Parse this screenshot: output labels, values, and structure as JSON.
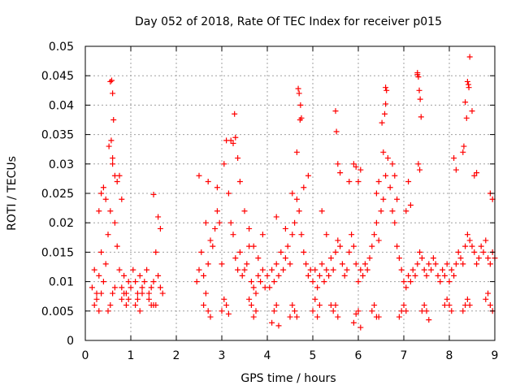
{
  "chart_data": {
    "type": "scatter",
    "title": "Day 052 of 2018, Rate Of TEC Index for receiver p015",
    "xlabel": "GPS time / hours",
    "ylabel": "ROTI / TECUs",
    "xlim": [
      0,
      9
    ],
    "ylim": [
      0,
      0.05
    ],
    "xticks": [
      0,
      1,
      2,
      3,
      4,
      5,
      6,
      7,
      8,
      9
    ],
    "yticks": [
      0,
      0.005,
      0.01,
      0.015,
      0.02,
      0.025,
      0.03,
      0.035,
      0.04,
      0.045,
      0.05
    ],
    "xtick_labels": [
      "0",
      "1",
      "2",
      "3",
      "4",
      "5",
      "6",
      "7",
      "8",
      "9"
    ],
    "ytick_labels": [
      "0",
      "0.005",
      "0.01",
      "0.015",
      "0.02",
      "0.025",
      "0.03",
      "0.035",
      "0.04",
      "0.045",
      "0.05"
    ],
    "grid": true,
    "marker": "+",
    "marker_color": "#ff0000",
    "series": [
      {
        "name": "ROTI",
        "x": [
          0.15,
          0.2,
          0.25,
          0.3,
          0.35,
          0.4,
          0.45,
          0.5,
          0.55,
          0.6,
          0.65,
          0.7,
          0.75,
          0.8,
          0.85,
          0.9,
          0.95,
          1.0,
          1.05,
          1.1,
          1.15,
          1.2,
          1.25,
          1.3,
          1.35,
          1.4,
          1.45,
          1.5,
          1.55,
          1.6,
          1.65,
          1.7,
          0.55,
          0.58,
          0.6,
          0.52,
          0.62,
          0.57,
          0.65,
          0.7,
          0.75,
          0.8,
          1.5,
          1.6,
          1.65,
          0.4,
          0.45,
          0.3,
          0.35,
          0.6,
          2.45,
          2.5,
          2.55,
          2.6,
          2.65,
          2.7,
          2.75,
          2.8,
          2.85,
          2.9,
          2.95,
          3.0,
          3.05,
          3.1,
          3.15,
          3.2,
          3.25,
          3.3,
          3.35,
          3.4,
          3.45,
          3.5,
          3.55,
          3.6,
          3.65,
          3.7,
          3.75,
          3.8,
          3.85,
          3.9,
          3.95,
          2.5,
          2.7,
          2.9,
          3.2,
          3.25,
          3.3,
          3.35,
          3.28,
          3.4,
          3.5,
          3.6,
          3.7,
          3.8,
          3.9,
          4.0,
          4.05,
          4.1,
          4.15,
          4.2,
          4.25,
          4.3,
          4.35,
          4.4,
          4.45,
          4.5,
          4.55,
          4.6,
          4.65,
          4.7,
          4.75,
          4.8,
          4.85,
          4.9,
          4.95,
          4.68,
          4.7,
          4.72,
          4.73,
          4.75,
          4.65,
          4.8,
          4.2,
          4.4,
          4.55,
          4.9,
          5.0,
          5.05,
          5.1,
          5.15,
          5.2,
          5.25,
          5.3,
          5.35,
          5.4,
          5.45,
          5.5,
          5.55,
          5.6,
          5.65,
          5.7,
          5.75,
          5.8,
          5.85,
          5.9,
          5.95,
          5.5,
          5.52,
          5.55,
          5.6,
          5.9,
          5.95,
          5.2,
          5.3,
          5.8,
          6.0,
          6.05,
          6.1,
          6.15,
          6.2,
          6.25,
          6.3,
          6.35,
          6.4,
          6.45,
          6.5,
          6.55,
          6.6,
          6.65,
          6.7,
          6.75,
          6.8,
          6.85,
          6.9,
          6.95,
          6.55,
          6.6,
          6.62,
          6.58,
          6.52,
          6.6,
          6.4,
          6.45,
          6.75,
          6.8,
          6.85,
          6.0,
          6.05,
          7.0,
          7.05,
          7.1,
          7.15,
          7.2,
          7.25,
          7.3,
          7.35,
          7.4,
          7.45,
          7.5,
          7.55,
          7.6,
          7.65,
          7.7,
          7.75,
          7.8,
          7.85,
          7.9,
          7.95,
          7.3,
          7.32,
          7.34,
          7.36,
          7.38,
          7.3,
          7.32,
          7.35,
          7.1,
          7.15,
          7.05,
          8.0,
          8.05,
          8.1,
          8.15,
          8.2,
          8.25,
          8.3,
          8.35,
          8.4,
          8.45,
          8.5,
          8.55,
          8.6,
          8.65,
          8.7,
          8.75,
          8.8,
          8.85,
          8.9,
          8.95,
          9.0,
          8.4,
          8.42,
          8.45,
          8.35,
          8.38,
          8.43,
          8.3,
          8.32,
          8.5,
          8.55,
          8.6,
          8.1,
          8.15,
          8.9,
          8.95,
          0.2,
          0.5,
          0.8,
          1.1,
          1.4,
          2.6,
          3.0,
          3.6,
          4.1,
          4.5,
          5.0,
          5.4,
          5.9,
          6.3,
          6.9,
          7.4,
          7.9,
          8.3,
          8.8,
          0.25,
          0.55,
          0.85,
          1.15,
          1.45,
          2.65,
          3.05,
          3.65,
          4.15,
          4.55,
          5.05,
          5.45,
          5.95,
          6.35,
          6.95,
          7.45,
          7.95,
          8.35,
          8.85,
          0.3,
          0.6,
          0.9,
          1.2,
          1.5,
          2.7,
          3.1,
          3.7,
          4.2,
          4.6,
          5.1,
          5.5,
          6.0,
          6.4,
          7.0,
          7.5,
          8.0,
          8.4,
          8.9,
          0.35,
          0.65,
          0.95,
          1.25,
          1.55,
          2.75,
          3.15,
          3.75,
          4.25,
          4.65,
          5.15,
          5.55,
          6.05,
          6.45,
          7.05,
          7.55,
          8.05,
          8.45,
          8.95
        ],
        "y": [
          0.009,
          0.012,
          0.008,
          0.011,
          0.015,
          0.01,
          0.013,
          0.018,
          0.022,
          0.03,
          0.02,
          0.016,
          0.012,
          0.009,
          0.011,
          0.008,
          0.01,
          0.009,
          0.012,
          0.01,
          0.008,
          0.011,
          0.009,
          0.01,
          0.012,
          0.008,
          0.009,
          0.01,
          0.015,
          0.011,
          0.009,
          0.008,
          0.044,
          0.0442,
          0.042,
          0.033,
          0.0375,
          0.034,
          0.028,
          0.027,
          0.028,
          0.024,
          0.0248,
          0.021,
          0.019,
          0.026,
          0.024,
          0.022,
          0.025,
          0.031,
          0.01,
          0.012,
          0.015,
          0.011,
          0.02,
          0.013,
          0.017,
          0.016,
          0.019,
          0.022,
          0.02,
          0.013,
          0.03,
          0.034,
          0.025,
          0.02,
          0.018,
          0.014,
          0.012,
          0.015,
          0.011,
          0.012,
          0.013,
          0.016,
          0.01,
          0.009,
          0.008,
          0.011,
          0.01,
          0.012,
          0.009,
          0.028,
          0.027,
          0.026,
          0.034,
          0.0335,
          0.0345,
          0.031,
          0.0385,
          0.027,
          0.022,
          0.019,
          0.016,
          0.014,
          0.018,
          0.011,
          0.009,
          0.012,
          0.01,
          0.013,
          0.011,
          0.015,
          0.012,
          0.014,
          0.016,
          0.013,
          0.018,
          0.02,
          0.024,
          0.022,
          0.018,
          0.015,
          0.013,
          0.011,
          0.012,
          0.0428,
          0.042,
          0.0375,
          0.04,
          0.0378,
          0.032,
          0.026,
          0.021,
          0.019,
          0.025,
          0.028,
          0.01,
          0.012,
          0.009,
          0.011,
          0.013,
          0.01,
          0.012,
          0.011,
          0.014,
          0.012,
          0.015,
          0.017,
          0.016,
          0.013,
          0.011,
          0.012,
          0.015,
          0.018,
          0.016,
          0.013,
          0.039,
          0.0355,
          0.03,
          0.0285,
          0.03,
          0.0295,
          0.022,
          0.018,
          0.027,
          0.01,
          0.012,
          0.011,
          0.013,
          0.012,
          0.014,
          0.016,
          0.018,
          0.02,
          0.017,
          0.022,
          0.024,
          0.028,
          0.031,
          0.026,
          0.022,
          0.02,
          0.016,
          0.014,
          0.012,
          0.032,
          0.043,
          0.0425,
          0.0385,
          0.037,
          0.0402,
          0.025,
          0.027,
          0.03,
          0.028,
          0.024,
          0.027,
          0.029,
          0.01,
          0.009,
          0.011,
          0.01,
          0.012,
          0.011,
          0.013,
          0.015,
          0.014,
          0.012,
          0.011,
          0.013,
          0.012,
          0.014,
          0.013,
          0.011,
          0.01,
          0.012,
          0.011,
          0.013,
          0.0452,
          0.0448,
          0.0425,
          0.041,
          0.038,
          0.0455,
          0.03,
          0.029,
          0.027,
          0.023,
          0.022,
          0.01,
          0.012,
          0.011,
          0.013,
          0.015,
          0.014,
          0.013,
          0.016,
          0.018,
          0.017,
          0.016,
          0.015,
          0.013,
          0.014,
          0.016,
          0.015,
          0.017,
          0.014,
          0.013,
          0.015,
          0.014,
          0.044,
          0.0435,
          0.0482,
          0.0405,
          0.0378,
          0.043,
          0.032,
          0.033,
          0.039,
          0.028,
          0.0285,
          0.031,
          0.029,
          0.025,
          0.024,
          0.006,
          0.005,
          0.007,
          0.006,
          0.007,
          0.006,
          0.005,
          0.007,
          0.003,
          0.004,
          0.005,
          0.006,
          0.003,
          0.005,
          0.004,
          0.005,
          0.006,
          0.005,
          0.007,
          0.007,
          0.006,
          0.008,
          0.007,
          0.006,
          0.008,
          0.007,
          0.006,
          0.005,
          0.006,
          0.007,
          0.005,
          0.0045,
          0.006,
          0.005,
          0.006,
          0.007,
          0.006,
          0.008,
          0.005,
          0.008,
          0.006,
          0.005,
          0.006,
          0.005,
          0.006,
          0.004,
          0.006,
          0.005,
          0.004,
          0.006,
          0.005,
          0.004,
          0.006,
          0.005,
          0.006,
          0.007,
          0.006,
          0.008,
          0.009,
          0.007,
          0.008,
          0.006,
          0.004,
          0.0045,
          0.005,
          0.0025,
          0.004,
          0.006,
          0.004,
          0.0022,
          0.004,
          0.005,
          0.0035,
          0.005,
          0.006,
          0.005
        ]
      }
    ]
  }
}
